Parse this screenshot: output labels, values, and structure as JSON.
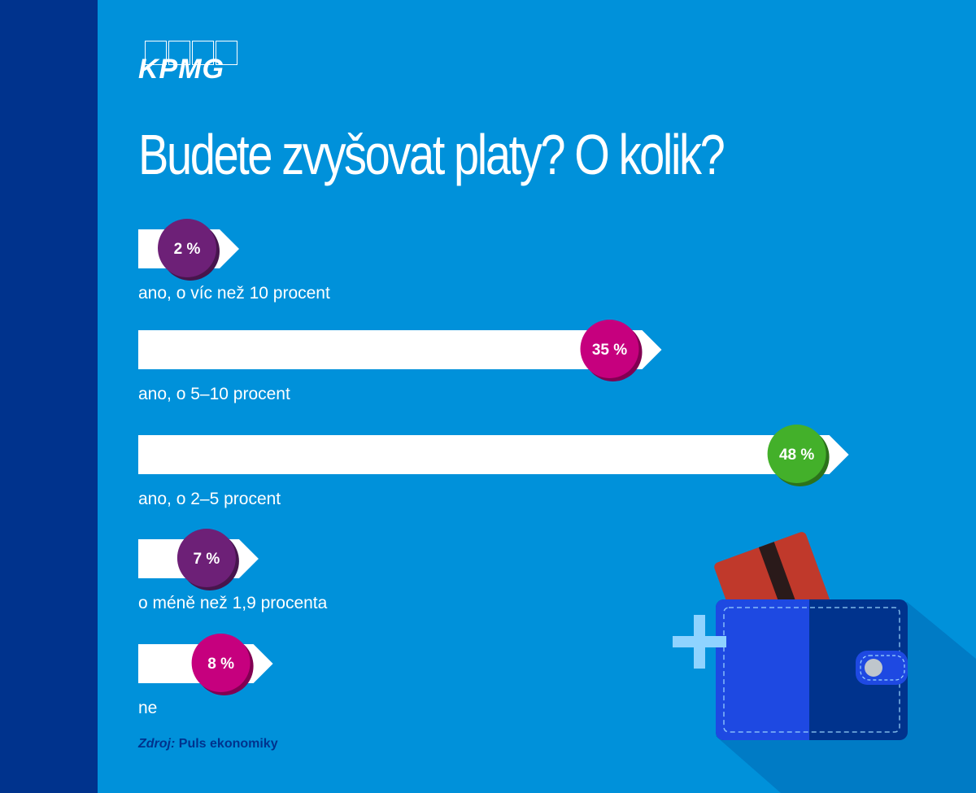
{
  "colors": {
    "sidebar": "#00338D",
    "background": "#0091DA",
    "bar": "#FFFFFF",
    "purple": "#6D2077",
    "magenta": "#C6007E",
    "green": "#43B02A",
    "source_text": "#00338D",
    "wallet_front": "#1E49E2",
    "wallet_back": "#00338D",
    "card": "#C0392B",
    "plus": "#8FD3FF"
  },
  "logo": {
    "text": "KPMG"
  },
  "chart_data": {
    "type": "bar",
    "orientation": "horizontal",
    "title": "Budete zvyšovat platy? O kolik?",
    "categories": [
      "ano, o víc než 10 procent",
      "ano, o 5–10 procent",
      "ano, o 2–5 procent",
      "o méně než 1,9 procenta",
      "ne"
    ],
    "values": [
      2,
      35,
      48,
      7,
      8
    ],
    "value_labels": [
      "2 %",
      "35 %",
      "48 %",
      "7 %",
      "8 %"
    ],
    "marker_colors": [
      "#6D2077",
      "#C6007E",
      "#43B02A",
      "#6D2077",
      "#C6007E"
    ],
    "unit": "%",
    "xlim": [
      0,
      50
    ],
    "grid": false,
    "legend": "none"
  },
  "source": {
    "prefix": "Zdroj:",
    "text": "Puls ekonomiky"
  },
  "icons": {
    "illustration": "wallet-icon",
    "plus": "plus-icon",
    "card": "credit-card-icon"
  }
}
